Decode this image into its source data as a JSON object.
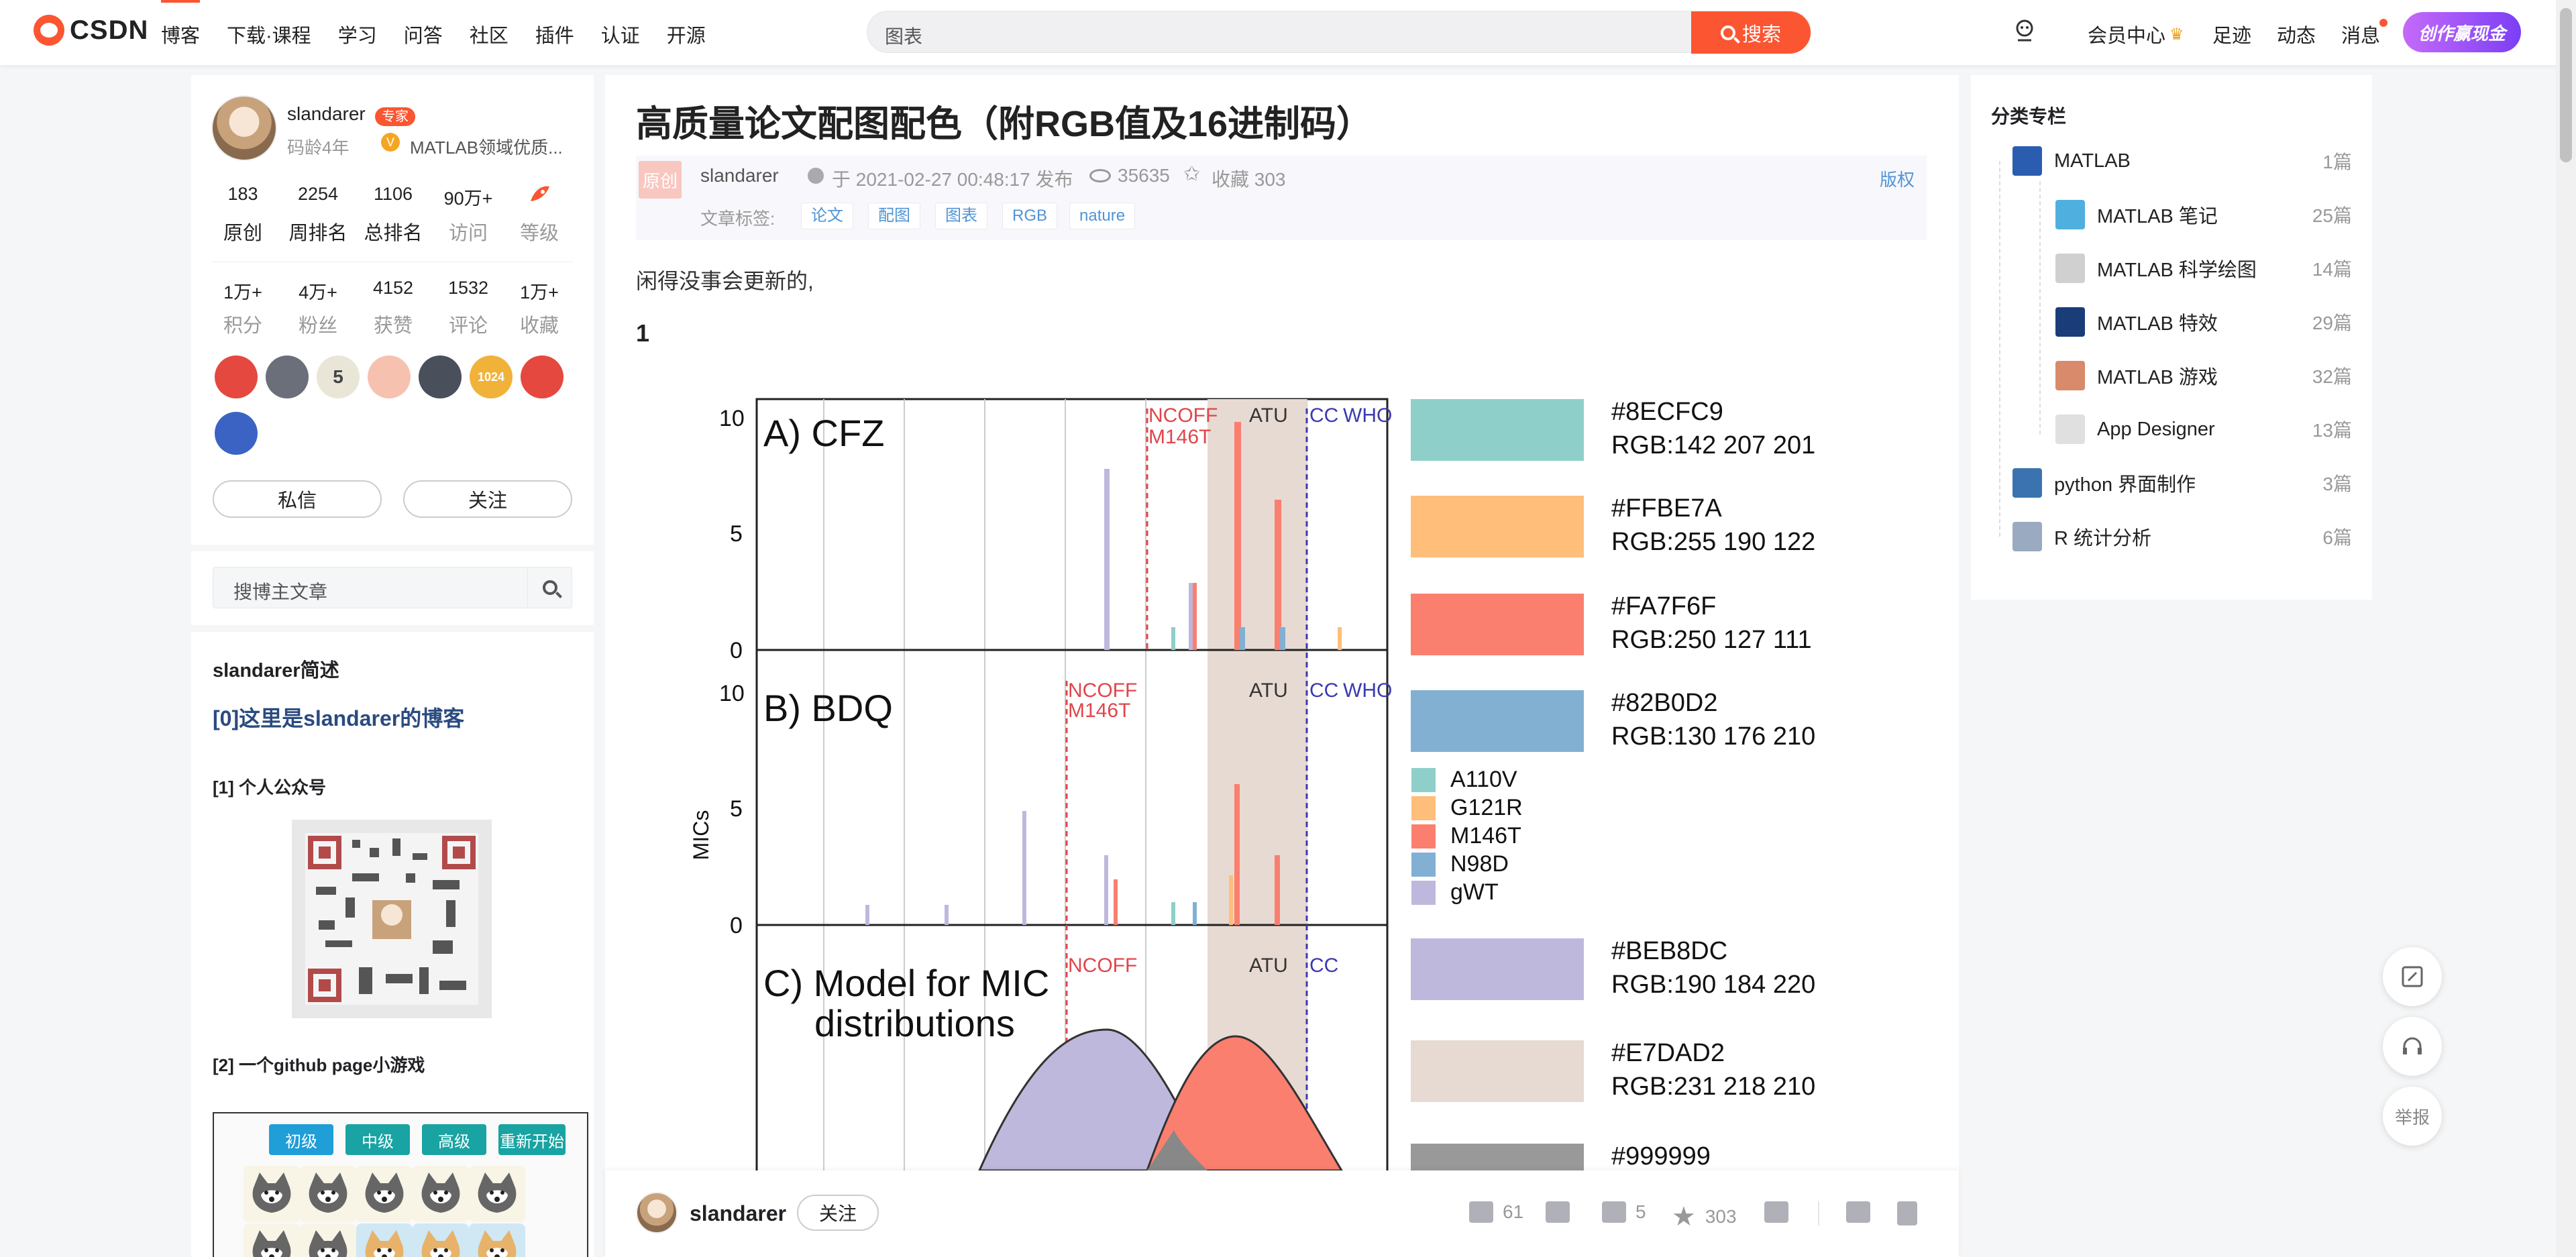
{
  "header": {
    "logo": "CSDN",
    "nav": [
      "博客",
      "下载·课程",
      "学习",
      "问答",
      "社区",
      "插件",
      "认证",
      "开源"
    ],
    "search_placeholder": "图表",
    "search_button": "搜索",
    "right": {
      "vip": "会员中心",
      "footprint": "足迹",
      "dynamic": "动态",
      "messages": "消息",
      "create": "创作赢现金"
    }
  },
  "profile": {
    "name": "slandarer",
    "expert_badge": "专家",
    "code_age": "码龄4年",
    "field": "MATLAB领域优质...",
    "stats1": [
      {
        "n": "183",
        "l": "原创"
      },
      {
        "n": "2254",
        "l": "周排名"
      },
      {
        "n": "1106",
        "l": "总排名"
      },
      {
        "n": "90万+",
        "l": "访问"
      },
      {
        "n": "",
        "l": "等级"
      }
    ],
    "stats2": [
      {
        "n": "1万+",
        "l": "积分"
      },
      {
        "n": "4万+",
        "l": "粉丝"
      },
      {
        "n": "4152",
        "l": "获赞"
      },
      {
        "n": "1532",
        "l": "评论"
      },
      {
        "n": "1万+",
        "l": "收藏"
      }
    ],
    "badge_texts": [
      "5",
      "1024"
    ],
    "message_btn": "私信",
    "follow_btn": "关注"
  },
  "blog_search": {
    "placeholder": "搜博主文章"
  },
  "intro": {
    "title": "slandarer简述",
    "link": "[0]这里是slandarer的博客",
    "sec1": "[1] 个人公众号",
    "sec2": "[2] 一个github page小游戏",
    "game_buttons": [
      "初级",
      "中级",
      "高级",
      "重新开始"
    ]
  },
  "article": {
    "title": "高质量论文配图配色（附RGB值及16进制码）",
    "original": "原创",
    "author": "slandarer",
    "date": "于 2021-02-27 00:48:17 发布",
    "views": "35635",
    "favorites": "收藏 303",
    "copyright": "版权",
    "tags_label": "文章标签:",
    "tags": [
      "论文",
      "配图",
      "图表",
      "RGB",
      "nature"
    ],
    "intro_text": "闲得没事会更新的,",
    "section_num": "1"
  },
  "figure": {
    "panel_titles": [
      "A) CFZ",
      "B) BDQ",
      "C) Model for MIC",
      "distributions"
    ],
    "line_labels": [
      "NCOFF",
      "M146T",
      "ATU",
      "CC",
      "WHO"
    ],
    "y_label": "MICs",
    "y_ticks": [
      "10",
      "5",
      "0"
    ],
    "swatches": [
      {
        "hex": "#8ECFC9",
        "rgb": "RGB:142 207 201",
        "color": "#8ECFC9"
      },
      {
        "hex": "#FFBE7A",
        "rgb": "RGB:255 190 122",
        "color": "#FFBE7A"
      },
      {
        "hex": "#FA7F6F",
        "rgb": "RGB:250 127 111",
        "color": "#FA7F6F"
      },
      {
        "hex": "#82B0D2",
        "rgb": "RGB:130 176 210",
        "color": "#82B0D2"
      },
      {
        "hex": "#BEB8DC",
        "rgb": "RGB:190 184 220",
        "color": "#BEB8DC"
      },
      {
        "hex": "#E7DAD2",
        "rgb": "RGB:231 218 210",
        "color": "#E7DAD2"
      },
      {
        "hex": "#999999",
        "rgb": "",
        "color": "#999999"
      }
    ],
    "legend": [
      {
        "label": "A110V",
        "color": "#8ECFC9"
      },
      {
        "label": "G121R",
        "color": "#FFBE7A"
      },
      {
        "label": "M146T",
        "color": "#FA7F6F"
      },
      {
        "label": "N98D",
        "color": "#82B0D2"
      },
      {
        "label": "gWT",
        "color": "#BEB8DC"
      }
    ]
  },
  "bottom_bar": {
    "author": "slandarer",
    "follow": "关注",
    "likes": "61",
    "comments": "5",
    "favorites": "303"
  },
  "categories": {
    "title": "分类专栏",
    "items": [
      {
        "name": "MATLAB",
        "count": "1篇",
        "indent": 0
      },
      {
        "name": "MATLAB 笔记",
        "count": "25篇",
        "indent": 1
      },
      {
        "name": "MATLAB 科学绘图",
        "count": "14篇",
        "indent": 1
      },
      {
        "name": "MATLAB 特效",
        "count": "29篇",
        "indent": 1
      },
      {
        "name": "MATLAB 游戏",
        "count": "32篇",
        "indent": 1
      },
      {
        "name": "App Designer",
        "count": "13篇",
        "indent": 1
      },
      {
        "name": "python 界面制作",
        "count": "3篇",
        "indent": 0
      },
      {
        "name": "R 统计分析",
        "count": "6篇",
        "indent": 0
      }
    ]
  },
  "floating": {
    "report": "举报"
  },
  "colors": {
    "brand": "#fc5531",
    "link": "#5094d5"
  }
}
